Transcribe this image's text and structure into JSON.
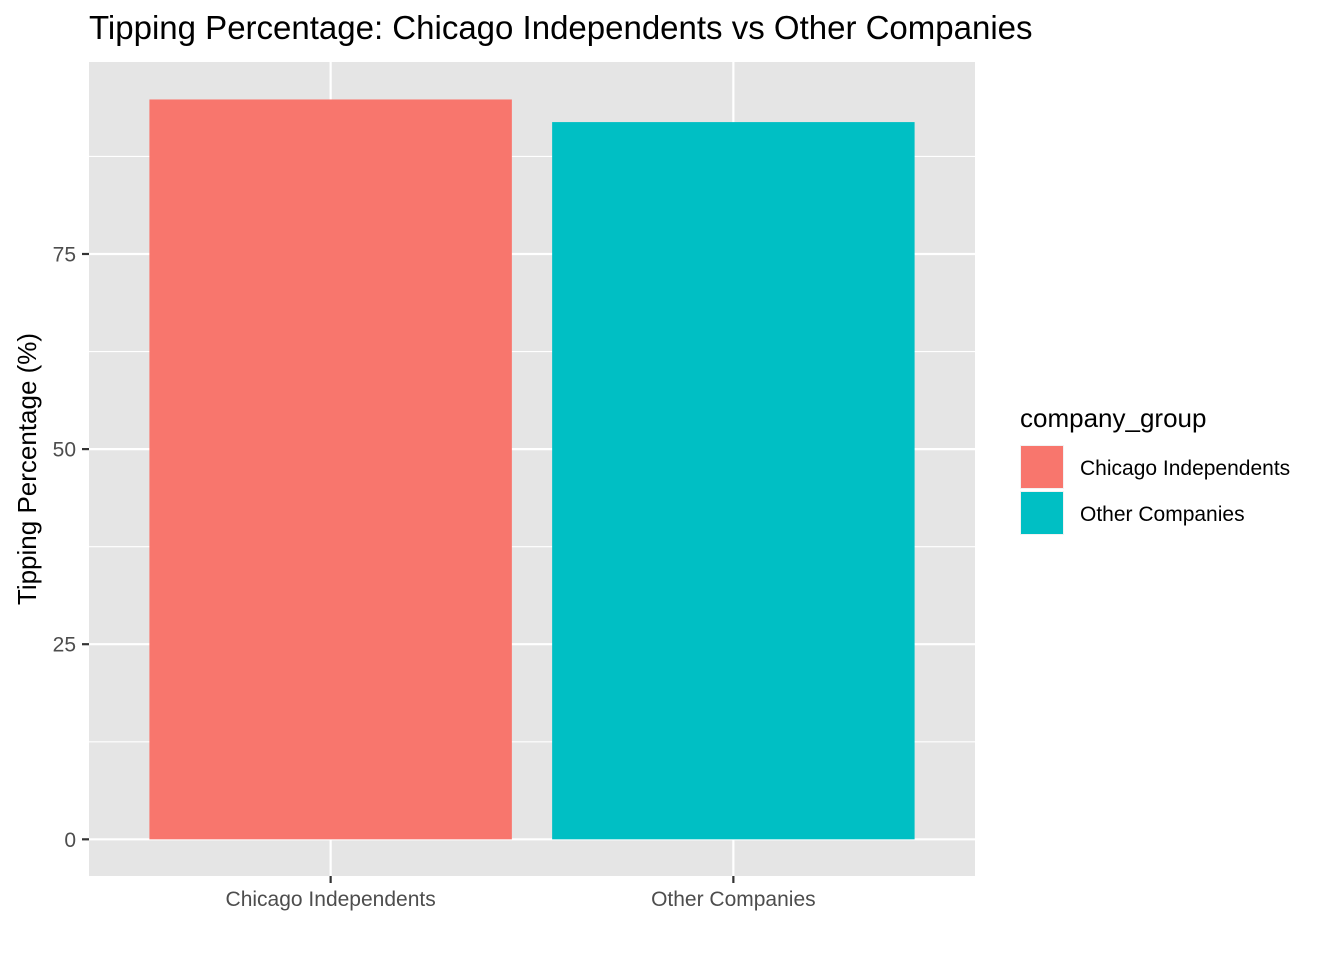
{
  "chart_data": {
    "type": "bar",
    "title": "Tipping Percentage: Chicago Independents vs Other Companies",
    "xlabel": "",
    "ylabel": "Tipping Percentage (%)",
    "categories": [
      "Chicago Independents",
      "Other Companies"
    ],
    "values": [
      94.8,
      91.9
    ],
    "colors": [
      "#F8766D",
      "#00BFC4"
    ],
    "ylim": [
      -4.7,
      99.6
    ],
    "yticks": [
      0,
      25,
      50,
      75
    ],
    "grid": true,
    "panel_background": "#e5e5e5",
    "legend": {
      "title": "company_group",
      "position": "right",
      "entries": [
        "Chicago Independents",
        "Other Companies"
      ]
    }
  }
}
